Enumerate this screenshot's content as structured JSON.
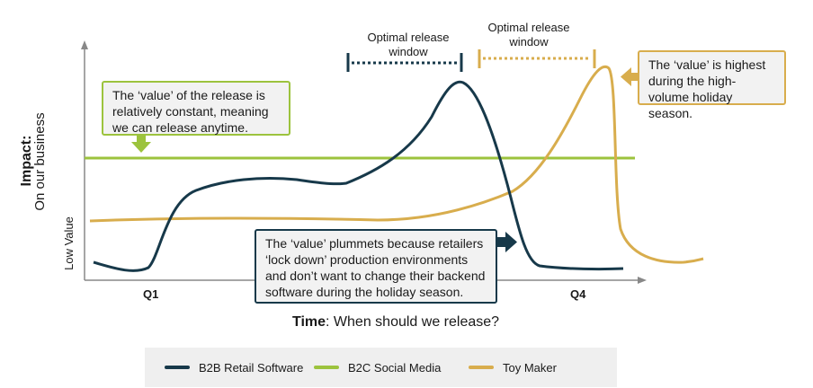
{
  "colors": {
    "b2b": "#17394a",
    "b2c": "#9cc33d",
    "toy": "#d8ad4d",
    "text": "#1a1a1a"
  },
  "chart_data": {
    "type": "line",
    "xlabel_bold": "Time",
    "xlabel_rest": ": When should we release?",
    "ylabel_main": "Impact:",
    "ylabel_sub": "On our business",
    "ylabel_low": "Low Value",
    "ticks": [
      "Q1",
      "Q4"
    ],
    "legend_position": "bottom",
    "grid": false,
    "series": [
      {
        "name": "B2B Retail Software",
        "color": "#17394a"
      },
      {
        "name": "B2C Social Media",
        "color": "#9cc33d"
      },
      {
        "name": "Toy Maker",
        "color": "#d8ad4d"
      }
    ]
  },
  "windows": [
    {
      "label_line1": "Optimal release",
      "label_line2": "window",
      "color": "#17394a"
    },
    {
      "label_line1": "Optimal release",
      "label_line2": "window",
      "color": "#d8ad4d"
    }
  ],
  "callouts": {
    "b2c": "The ‘value’ of the release is relatively constant, meaning we can release anytime.",
    "toy": "The ‘value’ is highest during the high-volume holiday season.",
    "b2b": "The ‘value’ plummets because retailers ‘lock down’ production environments and don’t want to change their backend software during the holiday season."
  }
}
